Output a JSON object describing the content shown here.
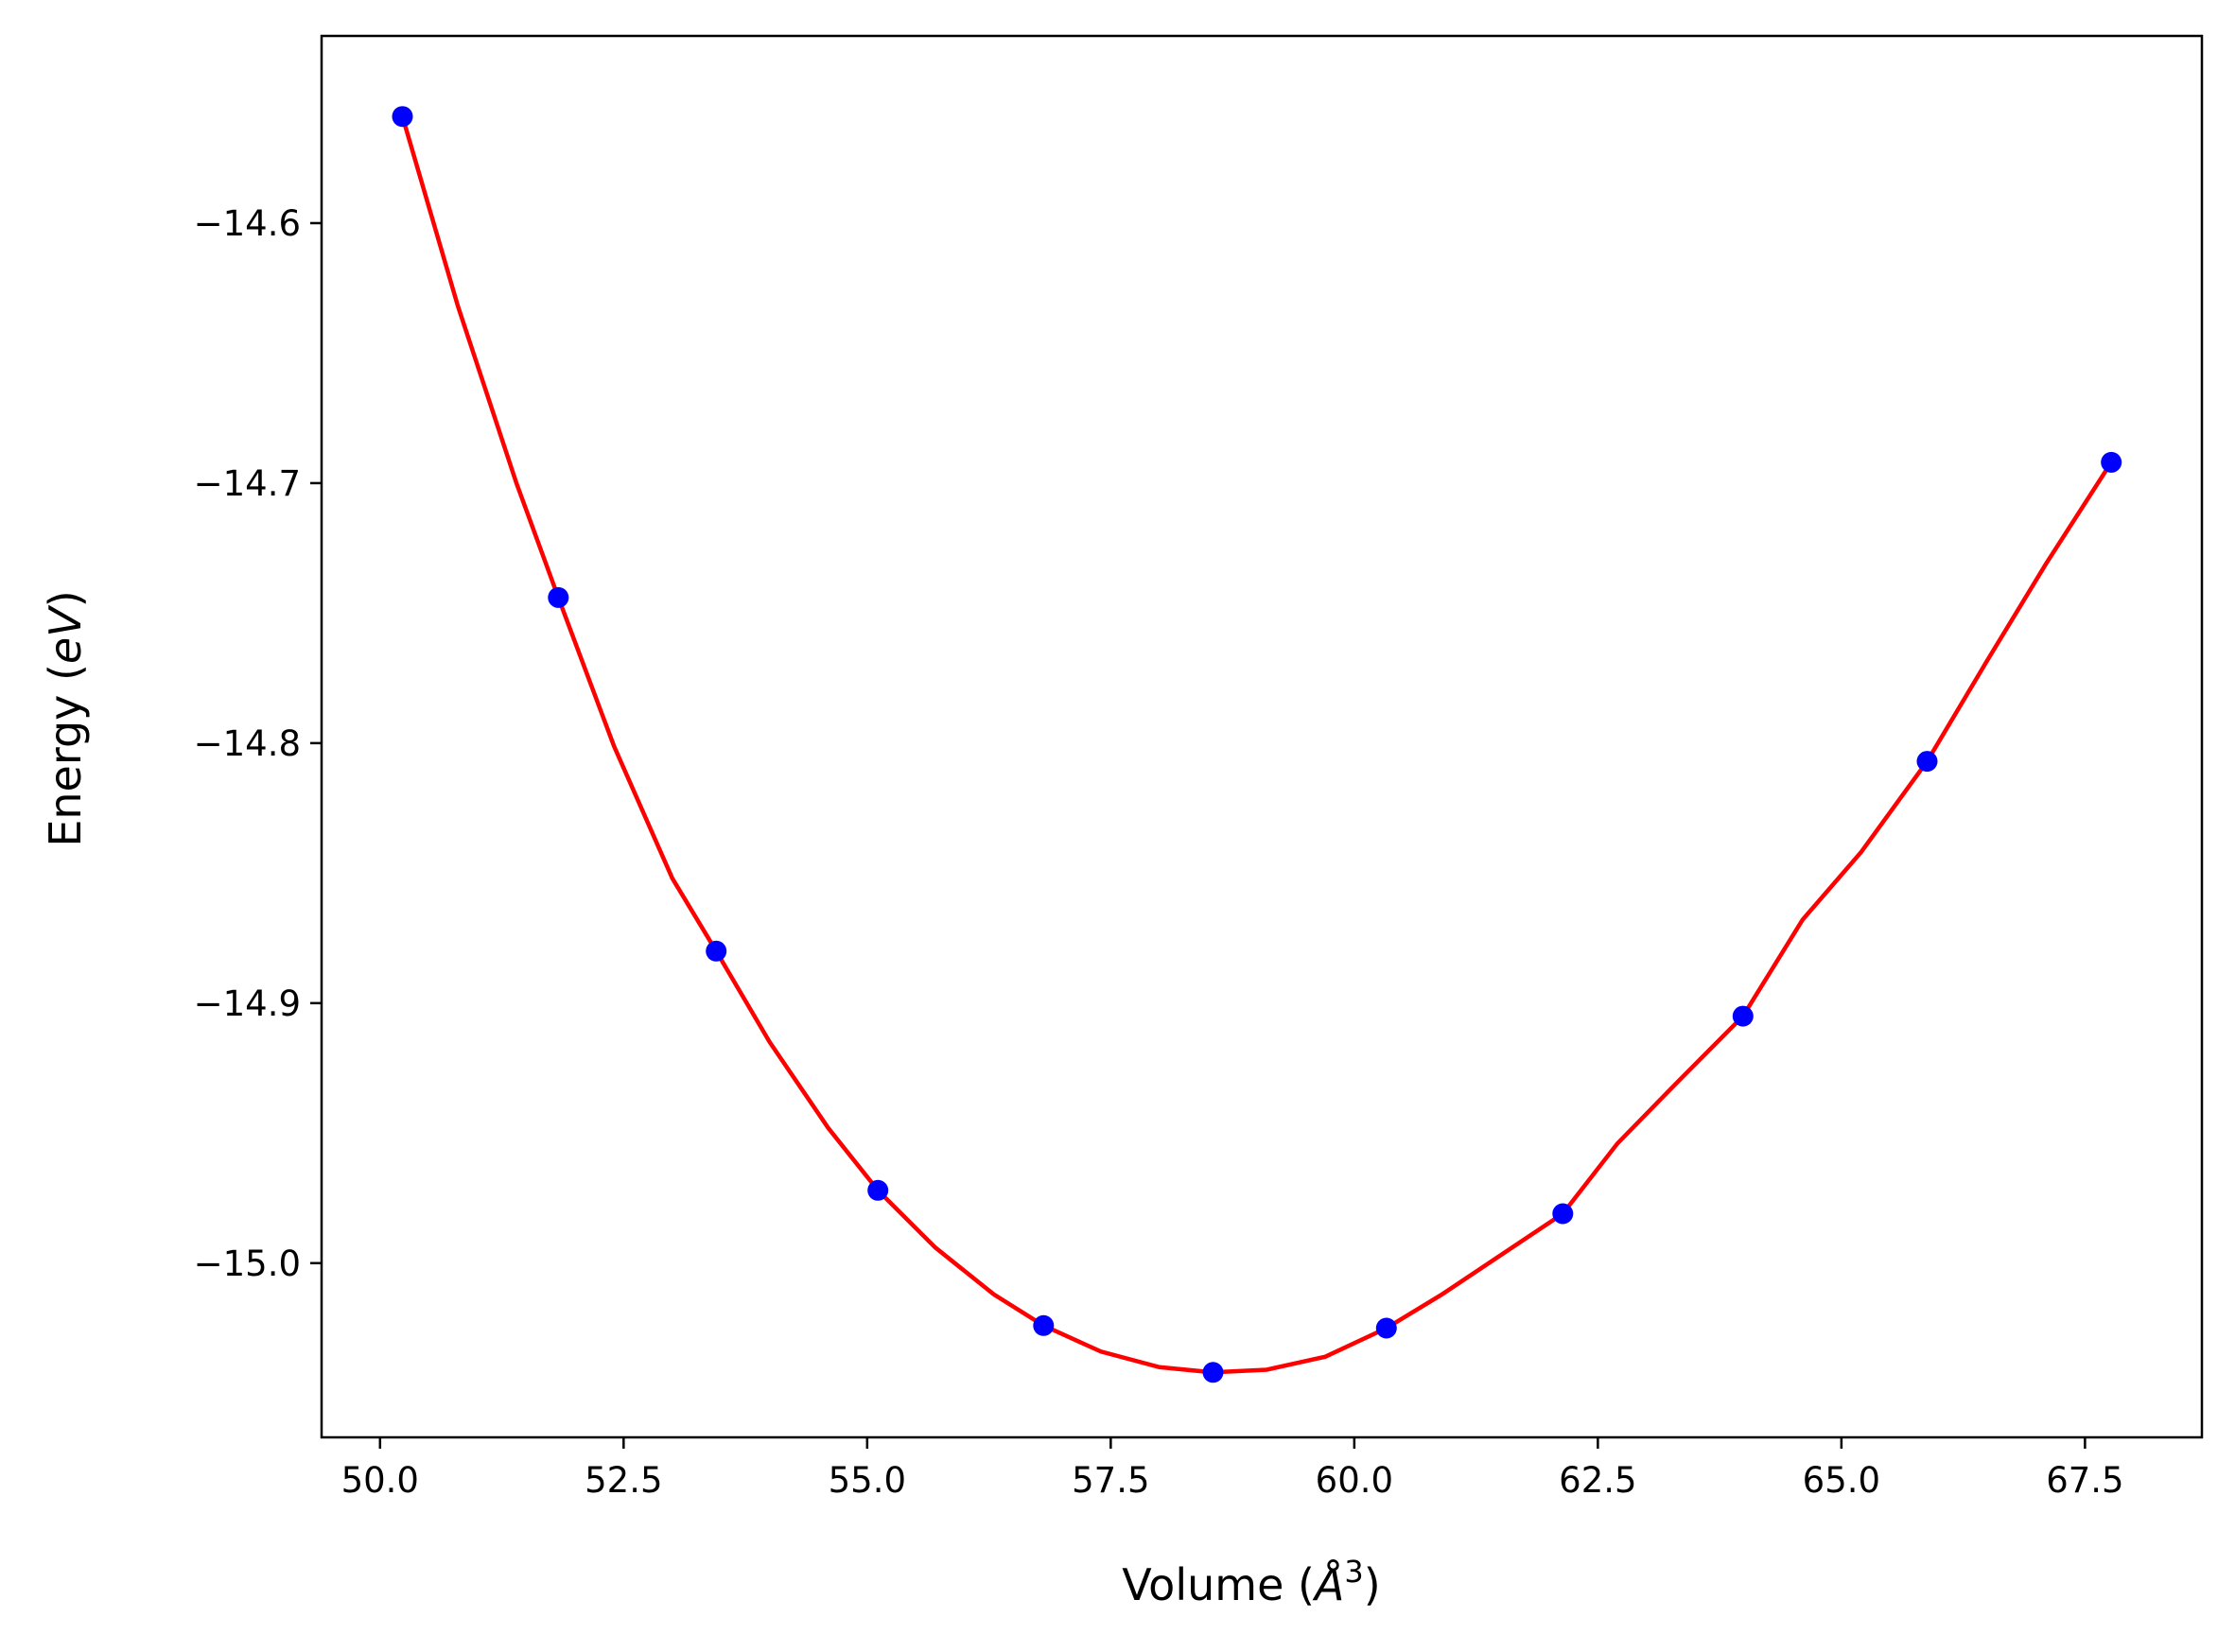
{
  "chart_data": {
    "type": "line",
    "title": "",
    "xlabel": {
      "prefix": "Volume (",
      "symbol": "Å",
      "sup": "3",
      "suffix": ")"
    },
    "ylabel": {
      "prefix": "Energy (",
      "italic": "eV",
      "suffix": ")"
    },
    "xlim": [
      49.4,
      68.7
    ],
    "ylim": [
      -15.067,
      -14.528
    ],
    "x_ticks": [
      50.0,
      52.5,
      55.0,
      57.5,
      60.0,
      62.5,
      65.0,
      67.5
    ],
    "x_tick_labels": [
      "50.0",
      "52.5",
      "55.0",
      "57.5",
      "60.0",
      "62.5",
      "65.0",
      "67.5"
    ],
    "y_ticks": [
      -14.6,
      -14.7,
      -14.8,
      -14.9,
      -15.0
    ],
    "y_tick_labels": [
      "−14.6",
      "−14.7",
      "−14.8",
      "−14.9",
      "−15.0"
    ],
    "grid": false,
    "series": [
      {
        "kind": "scatter",
        "color": "#0000ff",
        "x": [
          50.23,
          51.83,
          53.45,
          55.11,
          56.81,
          58.55,
          60.33,
          62.14,
          63.99,
          65.88,
          67.77
        ],
        "y": [
          -14.559,
          -14.744,
          -14.88,
          -14.972,
          -15.024,
          -15.042,
          -15.025,
          -14.981,
          -14.905,
          -14.807,
          -14.692
        ]
      },
      {
        "kind": "line",
        "color": "#ff0000",
        "x": [
          50.23,
          50.8,
          51.4,
          51.83,
          52.4,
          53.0,
          53.45,
          54.0,
          54.6,
          55.11,
          55.7,
          56.3,
          56.81,
          57.4,
          58.0,
          58.55,
          59.1,
          59.7,
          60.33,
          60.9,
          61.5,
          62.14,
          62.7,
          63.3,
          63.99,
          64.6,
          65.2,
          65.88,
          66.5,
          67.1,
          67.77
        ],
        "y": [
          -14.559,
          -14.632,
          -14.7,
          -14.744,
          -14.801,
          -14.852,
          -14.88,
          -14.915,
          -14.948,
          -14.972,
          -14.994,
          -15.012,
          -15.024,
          -15.034,
          -15.04,
          -15.042,
          -15.041,
          -15.036,
          -15.025,
          -15.012,
          -14.997,
          -14.981,
          -14.954,
          -14.931,
          -14.905,
          -14.868,
          -14.842,
          -14.807,
          -14.768,
          -14.731,
          -14.692
        ]
      }
    ]
  }
}
